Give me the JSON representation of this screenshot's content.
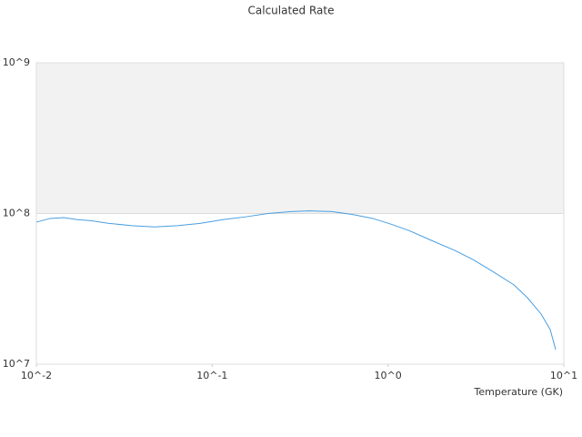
{
  "chart_data": {
    "type": "line",
    "title": "Calculated Rate",
    "x_label": "Temperature (GK)",
    "xscale": "log",
    "yscale": "log",
    "x": [
      0.01,
      0.01196,
      0.01429,
      0.0171,
      0.0204,
      0.0259,
      0.0349,
      0.047,
      0.0633,
      0.0853,
      0.115,
      0.155,
      0.208,
      0.281,
      0.356,
      0.48,
      0.646,
      0.82,
      1.04,
      1.32,
      1.78,
      2.39,
      3.04,
      3.86,
      5.2,
      6.21,
      7.43,
      8.36,
      8.99
    ],
    "series": [
      {
        "name": "Rate",
        "color": "#4a9ee0",
        "values": [
          87700000,
          92700000,
          94000000,
          91000000,
          89600000,
          86000000,
          83000000,
          81500000,
          83000000,
          86000000,
          91000000,
          95000000,
          100000000,
          103000000,
          104000000,
          103000000,
          98000000,
          92700000,
          85000000,
          77000000,
          66000000,
          57000000,
          49500000,
          41900000,
          33600000,
          27600000,
          21500000,
          17000000,
          12500000
        ]
      }
    ],
    "xlim": [
      0.01,
      10
    ],
    "ylim": [
      10000000,
      1000000000
    ],
    "xticks": [
      {
        "value": 0.01,
        "label": "10^-2"
      },
      {
        "value": 0.1,
        "label": "10^-1"
      },
      {
        "value": 1,
        "label": "10^0"
      },
      {
        "value": 10,
        "label": "10^1"
      }
    ],
    "yticks": [
      {
        "value": 10000000,
        "label": "10^7"
      },
      {
        "value": 100000000,
        "label": "10^8"
      },
      {
        "value": 1000000000,
        "label": "10^9"
      }
    ],
    "grid": true
  }
}
